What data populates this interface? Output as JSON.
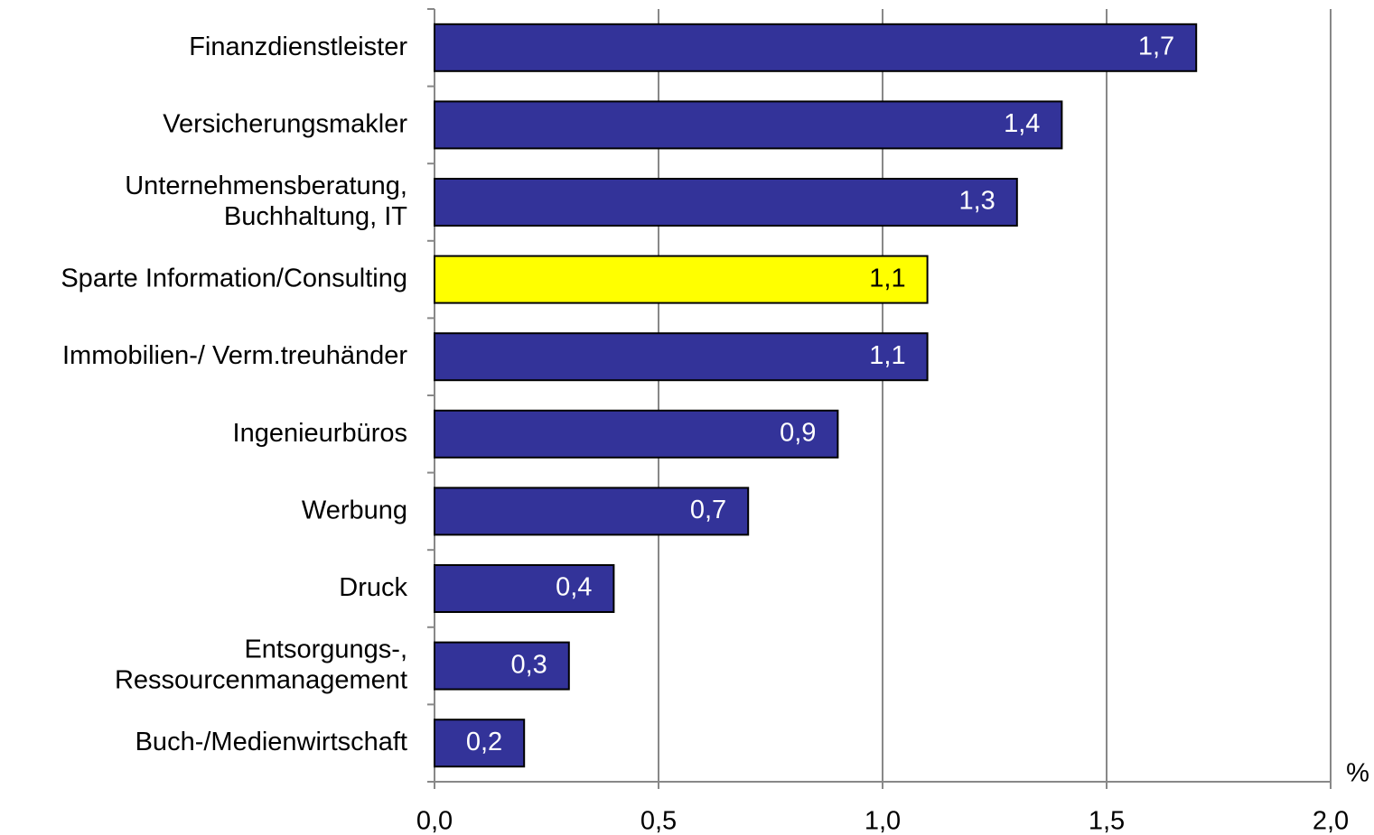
{
  "chart_data": {
    "type": "barh",
    "categories": [
      [
        "Finanzdienstleister"
      ],
      [
        "Versicherungsmakler"
      ],
      [
        "Unternehmensberatung,",
        "Buchhaltung, IT"
      ],
      [
        "Sparte Information/Consulting"
      ],
      [
        "Immobilien-/ Verm.treuhänder"
      ],
      [
        "Ingenieurbüros"
      ],
      [
        "Werbung"
      ],
      [
        "Druck"
      ],
      [
        "Entsorgungs-,",
        "Ressourcenmanagement"
      ],
      [
        "Buch-/Medienwirtschaft"
      ]
    ],
    "values": [
      1.7,
      1.4,
      1.3,
      1.1,
      1.1,
      0.9,
      0.7,
      0.4,
      0.3,
      0.2
    ],
    "value_labels": [
      "1,7",
      "1,4",
      "1,3",
      "1,1",
      "1,1",
      "0,9",
      "0,7",
      "0,4",
      "0,3",
      "0,2"
    ],
    "colors": [
      "#333399",
      "#333399",
      "#333399",
      "#ffff00",
      "#333399",
      "#333399",
      "#333399",
      "#333399",
      "#333399",
      "#333399"
    ],
    "xlabel": "%",
    "xlim": [
      0,
      2
    ],
    "xticks": [
      {
        "value": 0,
        "label": "0,0"
      },
      {
        "value": 0.5,
        "label": "0,5"
      },
      {
        "value": 1,
        "label": "1,0"
      },
      {
        "value": 1.5,
        "label": "1,5"
      },
      {
        "value": 2,
        "label": "2,0"
      }
    ],
    "grid": true
  }
}
